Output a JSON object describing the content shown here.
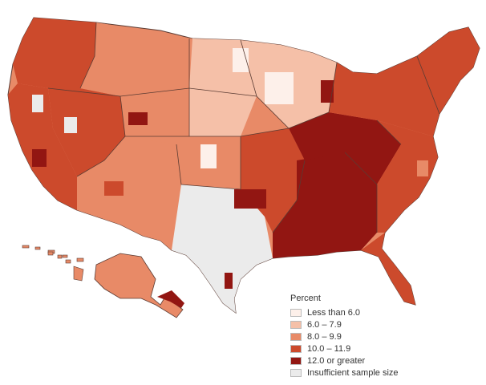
{
  "legend": {
    "title": "Percent",
    "items": [
      {
        "label": "Less than 6.0",
        "color": "#fdf0ea"
      },
      {
        "label": "6.0 – 7.9",
        "color": "#f5c0a8"
      },
      {
        "label": "8.0 – 9.9",
        "color": "#e88a67"
      },
      {
        "label": "10.0 – 11.9",
        "color": "#cc4a2c"
      },
      {
        "label": "12.0 or greater",
        "color": "#921612"
      },
      {
        "label": "Insufficient sample size",
        "color": "#ebebeb"
      }
    ]
  },
  "colors": {
    "background": "#ffffff",
    "border": "#5a3b33"
  },
  "regions": [
    {
      "name": "region-pacific-northwest",
      "class": 3
    },
    {
      "name": "region-california",
      "class": 3
    },
    {
      "name": "region-great-basin",
      "class": 3
    },
    {
      "name": "region-southwest",
      "class": 2
    },
    {
      "name": "region-northern-rockies",
      "class": 2
    },
    {
      "name": "region-northern-plains",
      "class": 1
    },
    {
      "name": "region-texas-west",
      "class": 5
    },
    {
      "name": "region-central-plains",
      "class": 2
    },
    {
      "name": "region-upper-midwest",
      "class": 1
    },
    {
      "name": "region-south-central",
      "class": 3
    },
    {
      "name": "region-deep-south",
      "class": 4
    },
    {
      "name": "region-ohio-valley",
      "class": 4
    },
    {
      "name": "region-southeast",
      "class": 3
    },
    {
      "name": "region-florida",
      "class": 3
    },
    {
      "name": "region-northeast",
      "class": 3
    },
    {
      "name": "region-new-england",
      "class": 3
    },
    {
      "name": "region-alaska",
      "class": 2
    },
    {
      "name": "region-hawaii",
      "class": 2
    }
  ]
}
